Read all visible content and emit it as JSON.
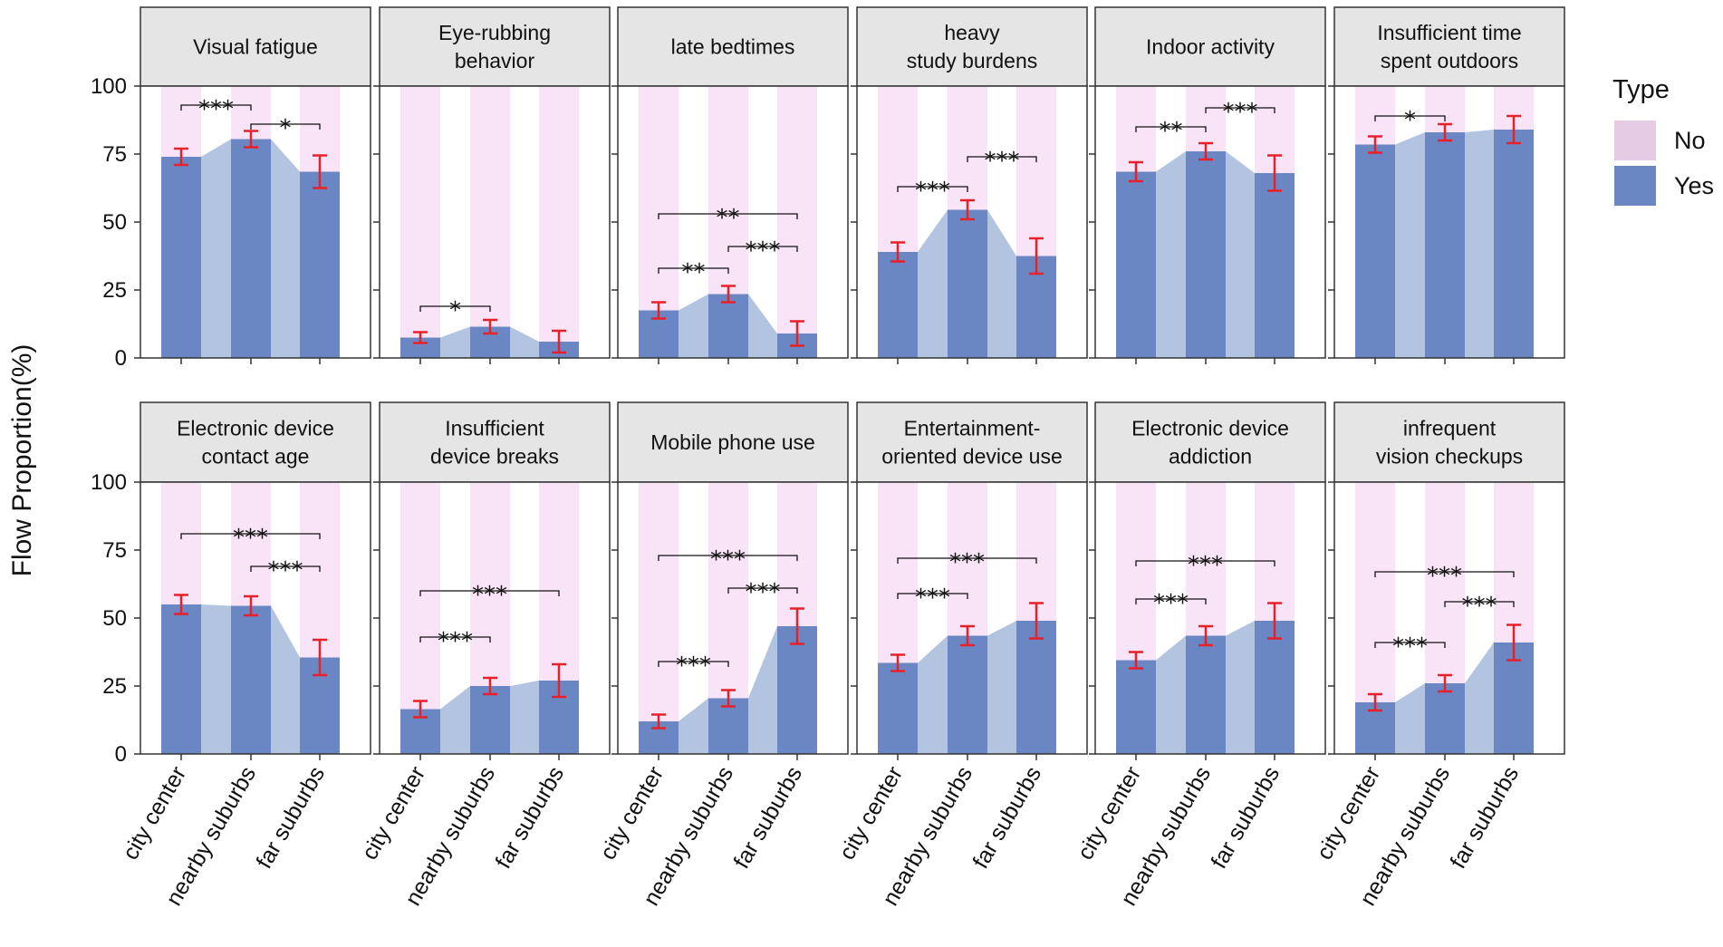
{
  "chart_data": {
    "type": "bar",
    "ylabel": "Flow Proportion(%)",
    "ylim": [
      0,
      100
    ],
    "yticks": [
      0,
      25,
      50,
      75,
      100
    ],
    "categories": [
      "city center",
      "nearby suburbs",
      "far suburbs"
    ],
    "legend": {
      "title": "Type",
      "position": "right",
      "entries": [
        {
          "label": "No",
          "color": "#e6cce3"
        },
        {
          "label": "Yes",
          "color": "#6a87c4"
        }
      ]
    },
    "colors": {
      "yes_bar": "#6a87c4",
      "flow_area": "#b3c4e0",
      "no_stripe": "#f8e4f6",
      "error_bar": "#e8202a",
      "strip_fill": "#e5e5e5"
    },
    "panels": [
      {
        "title_lines": [
          "Visual fatigue"
        ],
        "values": [
          74,
          80.5,
          68.5
        ],
        "err": [
          3,
          3,
          6
        ],
        "brackets": [
          {
            "from": 0,
            "to": 1,
            "y": 93,
            "label": "***"
          },
          {
            "from": 1,
            "to": 2,
            "y": 86,
            "label": "*"
          }
        ]
      },
      {
        "title_lines": [
          "Eye-rubbing",
          "behavior"
        ],
        "values": [
          7.5,
          11.5,
          6
        ],
        "err": [
          2,
          2.5,
          4
        ],
        "brackets": [
          {
            "from": 0,
            "to": 1,
            "y": 19,
            "label": "*"
          }
        ]
      },
      {
        "title_lines": [
          "late bedtimes"
        ],
        "values": [
          17.5,
          23.5,
          9
        ],
        "err": [
          3,
          3,
          4.5
        ],
        "brackets": [
          {
            "from": 0,
            "to": 2,
            "y": 53,
            "label": "**"
          },
          {
            "from": 0,
            "to": 1,
            "y": 33,
            "label": "**"
          },
          {
            "from": 1,
            "to": 2,
            "y": 41,
            "label": "***"
          }
        ]
      },
      {
        "title_lines": [
          "heavy",
          "study burdens"
        ],
        "values": [
          39,
          54.5,
          37.5
        ],
        "err": [
          3.5,
          3.5,
          6.5
        ],
        "brackets": [
          {
            "from": 0,
            "to": 1,
            "y": 63,
            "label": "***"
          },
          {
            "from": 1,
            "to": 2,
            "y": 74,
            "label": "***"
          }
        ]
      },
      {
        "title_lines": [
          "Indoor  activity"
        ],
        "values": [
          68.5,
          76,
          68
        ],
        "err": [
          3.5,
          3,
          6.5
        ],
        "brackets": [
          {
            "from": 0,
            "to": 1,
            "y": 85,
            "label": "**"
          },
          {
            "from": 1,
            "to": 2,
            "y": 92,
            "label": "***"
          }
        ]
      },
      {
        "title_lines": [
          "Insufficient time",
          "spent outdoors"
        ],
        "values": [
          78.5,
          83,
          84
        ],
        "err": [
          3,
          3,
          5
        ],
        "brackets": [
          {
            "from": 0,
            "to": 1,
            "y": 89,
            "label": "*"
          }
        ]
      },
      {
        "title_lines": [
          "Electronic device",
          "contact age"
        ],
        "values": [
          55,
          54.5,
          35.5
        ],
        "err": [
          3.5,
          3.5,
          6.5
        ],
        "brackets": [
          {
            "from": 0,
            "to": 2,
            "y": 81,
            "label": "***"
          },
          {
            "from": 1,
            "to": 2,
            "y": 69,
            "label": "***"
          }
        ]
      },
      {
        "title_lines": [
          "Insufficient",
          "device breaks"
        ],
        "values": [
          16.5,
          25,
          27
        ],
        "err": [
          3,
          3,
          6
        ],
        "brackets": [
          {
            "from": 0,
            "to": 2,
            "y": 60,
            "label": "***"
          },
          {
            "from": 0,
            "to": 1,
            "y": 43,
            "label": "***"
          }
        ]
      },
      {
        "title_lines": [
          "Mobile phone use"
        ],
        "values": [
          12,
          20.5,
          47
        ],
        "err": [
          2.5,
          3,
          6.5
        ],
        "brackets": [
          {
            "from": 0,
            "to": 2,
            "y": 73,
            "label": "***"
          },
          {
            "from": 0,
            "to": 1,
            "y": 34,
            "label": "***"
          },
          {
            "from": 1,
            "to": 2,
            "y": 61,
            "label": "***"
          }
        ]
      },
      {
        "title_lines": [
          "Entertainment-",
          "oriented  device use"
        ],
        "values": [
          33.5,
          43.5,
          49
        ],
        "err": [
          3,
          3.5,
          6.5
        ],
        "brackets": [
          {
            "from": 0,
            "to": 2,
            "y": 72,
            "label": "***"
          },
          {
            "from": 0,
            "to": 1,
            "y": 59,
            "label": "***"
          }
        ]
      },
      {
        "title_lines": [
          "Electronic device",
          "addiction"
        ],
        "values": [
          34.5,
          43.5,
          49
        ],
        "err": [
          3,
          3.5,
          6.5
        ],
        "brackets": [
          {
            "from": 0,
            "to": 2,
            "y": 71,
            "label": "***"
          },
          {
            "from": 0,
            "to": 1,
            "y": 57,
            "label": "***"
          }
        ]
      },
      {
        "title_lines": [
          "infrequent",
          "vision checkups"
        ],
        "values": [
          19,
          26,
          41
        ],
        "err": [
          3,
          3,
          6.5
        ],
        "brackets": [
          {
            "from": 0,
            "to": 2,
            "y": 67,
            "label": "***"
          },
          {
            "from": 0,
            "to": 1,
            "y": 41,
            "label": "***"
          },
          {
            "from": 1,
            "to": 2,
            "y": 56,
            "label": "***"
          }
        ]
      }
    ]
  }
}
